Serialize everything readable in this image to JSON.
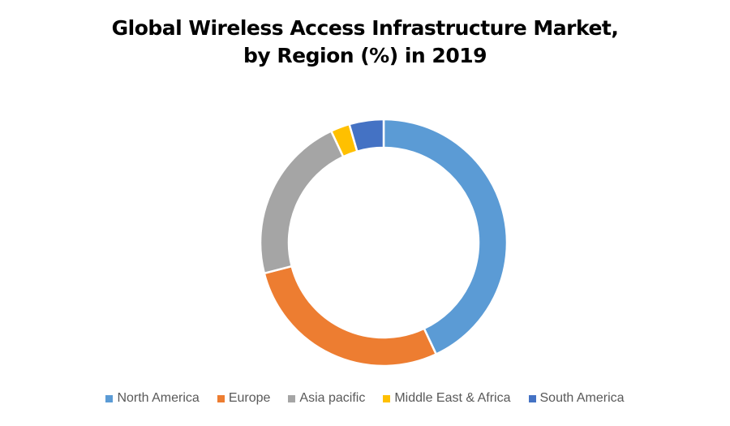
{
  "chart_data": {
    "type": "pie",
    "subtype": "doughnut",
    "title": "Global Wireless Access Infrastructure Market, by Region (%) in 2019",
    "title_lines": [
      "Global Wireless Access Infrastructure Market,",
      "by Region (%) in 2019"
    ],
    "categories": [
      "North America",
      "Europe",
      "Asia pacific",
      "Middle East & Africa",
      "South America"
    ],
    "values": [
      43,
      28,
      22,
      2.5,
      4.5
    ],
    "colors": [
      "#5B9BD5",
      "#ED7D31",
      "#A5A5A5",
      "#FFC000",
      "#4472C4"
    ],
    "unit": "%",
    "legend_position": "bottom",
    "start_angle": "top, clockwise"
  }
}
